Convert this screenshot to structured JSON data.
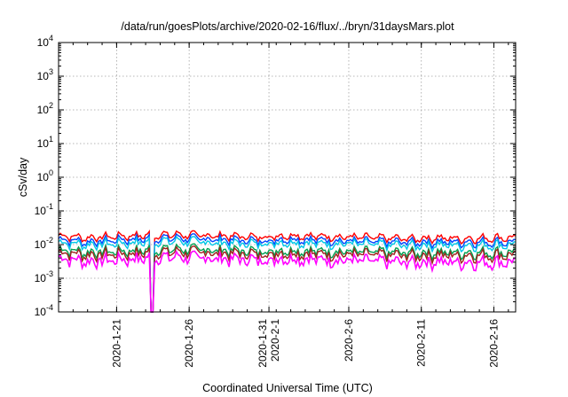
{
  "chart_data": {
    "type": "line",
    "title": "/data/run/goesPlots/archive/2020-02-16/flux/../bryn/31daysMars.plot",
    "xlabel": "Coordinated Universal Time (UTC)",
    "ylabel": "cSv/day",
    "yscale": "log",
    "ylim": [
      0.0001,
      10000
    ],
    "y_ticks": [
      {
        "value": 0.0001,
        "base": "10",
        "exp": "-4"
      },
      {
        "value": 0.001,
        "base": "10",
        "exp": "-3"
      },
      {
        "value": 0.01,
        "base": "10",
        "exp": "-2"
      },
      {
        "value": 0.1,
        "base": "10",
        "exp": "-1"
      },
      {
        "value": 1,
        "base": "10",
        "exp": "0"
      },
      {
        "value": 10,
        "base": "10",
        "exp": "1"
      },
      {
        "value": 100,
        "base": "10",
        "exp": "2"
      },
      {
        "value": 1000,
        "base": "10",
        "exp": "3"
      },
      {
        "value": 10000,
        "base": "10",
        "exp": "4"
      }
    ],
    "xlim": [
      "2020-01-17",
      "2020-02-17T12:00"
    ],
    "x_ticks": [
      "2020-1-21",
      "2020-1-26",
      "2020-1-31|2020-2-1",
      "2020-2-6",
      "2020-2-11",
      "2020-2-16"
    ],
    "x_tick_dates": [
      "2020-01-21",
      "2020-01-26",
      "2020-01-31T12:00",
      "2020-02-06",
      "2020-02-11",
      "2020-02-16"
    ],
    "grid": true,
    "legend": "none",
    "dropout": {
      "start": "2020-01-23T08:00",
      "end": "2020-01-23T14:00",
      "min": 0.0001
    },
    "series": [
      {
        "color": "#ff0000",
        "values": [
          {
            "x": "2020-01-17",
            "y": 0.019
          },
          {
            "x": "2020-01-19",
            "y": 0.016
          },
          {
            "x": "2020-01-21",
            "y": 0.018
          },
          {
            "x": "2020-01-23",
            "y": 0.019
          },
          {
            "x": "2020-01-25",
            "y": 0.02
          },
          {
            "x": "2020-01-27",
            "y": 0.019
          },
          {
            "x": "2020-01-29",
            "y": 0.018
          },
          {
            "x": "2020-01-31",
            "y": 0.017
          },
          {
            "x": "2020-02-02",
            "y": 0.019
          },
          {
            "x": "2020-02-04",
            "y": 0.018
          },
          {
            "x": "2020-02-06",
            "y": 0.017
          },
          {
            "x": "2020-02-08",
            "y": 0.016
          },
          {
            "x": "2020-02-10",
            "y": 0.015
          },
          {
            "x": "2020-02-12",
            "y": 0.016
          },
          {
            "x": "2020-02-14",
            "y": 0.015
          },
          {
            "x": "2020-02-16",
            "y": 0.016
          },
          {
            "x": "2020-02-17T12:00",
            "y": 0.016
          }
        ]
      },
      {
        "color": "#0044ff",
        "values": [
          {
            "x": "2020-01-17",
            "y": 0.015
          },
          {
            "x": "2020-01-19",
            "y": 0.012
          },
          {
            "x": "2020-01-21",
            "y": 0.014
          },
          {
            "x": "2020-01-23",
            "y": 0.015
          },
          {
            "x": "2020-01-25",
            "y": 0.016
          },
          {
            "x": "2020-01-27",
            "y": 0.015
          },
          {
            "x": "2020-01-29",
            "y": 0.014
          },
          {
            "x": "2020-01-31",
            "y": 0.013
          },
          {
            "x": "2020-02-02",
            "y": 0.015
          },
          {
            "x": "2020-02-04",
            "y": 0.014
          },
          {
            "x": "2020-02-06",
            "y": 0.013
          },
          {
            "x": "2020-02-08",
            "y": 0.012
          },
          {
            "x": "2020-02-10",
            "y": 0.012
          },
          {
            "x": "2020-02-12",
            "y": 0.012
          },
          {
            "x": "2020-02-14",
            "y": 0.012
          },
          {
            "x": "2020-02-16",
            "y": 0.012
          },
          {
            "x": "2020-02-17T12:00",
            "y": 0.012
          }
        ]
      },
      {
        "color": "#00c8e6",
        "values": [
          {
            "x": "2020-01-17",
            "y": 0.012
          },
          {
            "x": "2020-01-19",
            "y": 0.01
          },
          {
            "x": "2020-01-21",
            "y": 0.011
          },
          {
            "x": "2020-01-23",
            "y": 0.012
          },
          {
            "x": "2020-01-25",
            "y": 0.013
          },
          {
            "x": "2020-01-27",
            "y": 0.012
          },
          {
            "x": "2020-01-29",
            "y": 0.011
          },
          {
            "x": "2020-01-31",
            "y": 0.011
          },
          {
            "x": "2020-02-02",
            "y": 0.012
          },
          {
            "x": "2020-02-04",
            "y": 0.011
          },
          {
            "x": "2020-02-06",
            "y": 0.011
          },
          {
            "x": "2020-02-08",
            "y": 0.01
          },
          {
            "x": "2020-02-10",
            "y": 0.0095
          },
          {
            "x": "2020-02-12",
            "y": 0.01
          },
          {
            "x": "2020-02-14",
            "y": 0.0095
          },
          {
            "x": "2020-02-16",
            "y": 0.01
          },
          {
            "x": "2020-02-17T12:00",
            "y": 0.01
          }
        ]
      },
      {
        "color": "#00a050",
        "values": [
          {
            "x": "2020-01-17",
            "y": 0.0075
          },
          {
            "x": "2020-01-19",
            "y": 0.006
          },
          {
            "x": "2020-01-21",
            "y": 0.0065
          },
          {
            "x": "2020-01-23",
            "y": 0.007
          },
          {
            "x": "2020-01-25",
            "y": 0.0075
          },
          {
            "x": "2020-01-27",
            "y": 0.0072
          },
          {
            "x": "2020-01-29",
            "y": 0.0068
          },
          {
            "x": "2020-01-31",
            "y": 0.0065
          },
          {
            "x": "2020-02-02",
            "y": 0.007
          },
          {
            "x": "2020-02-04",
            "y": 0.0066
          },
          {
            "x": "2020-02-06",
            "y": 0.0064
          },
          {
            "x": "2020-02-08",
            "y": 0.006
          },
          {
            "x": "2020-02-10",
            "y": 0.0058
          },
          {
            "x": "2020-02-12",
            "y": 0.006
          },
          {
            "x": "2020-02-14",
            "y": 0.0058
          },
          {
            "x": "2020-02-16",
            "y": 0.006
          },
          {
            "x": "2020-02-17T12:00",
            "y": 0.006
          }
        ]
      },
      {
        "color": "#a0201c",
        "values": [
          {
            "x": "2020-01-17",
            "y": 0.0062
          },
          {
            "x": "2020-01-19",
            "y": 0.005
          },
          {
            "x": "2020-01-21",
            "y": 0.0054
          },
          {
            "x": "2020-01-23",
            "y": 0.0058
          },
          {
            "x": "2020-01-25",
            "y": 0.0062
          },
          {
            "x": "2020-01-27",
            "y": 0.006
          },
          {
            "x": "2020-01-29",
            "y": 0.0056
          },
          {
            "x": "2020-01-31",
            "y": 0.0054
          },
          {
            "x": "2020-02-02",
            "y": 0.0058
          },
          {
            "x": "2020-02-04",
            "y": 0.0055
          },
          {
            "x": "2020-02-06",
            "y": 0.0053
          },
          {
            "x": "2020-02-08",
            "y": 0.005
          },
          {
            "x": "2020-02-10",
            "y": 0.0048
          },
          {
            "x": "2020-02-12",
            "y": 0.005
          },
          {
            "x": "2020-02-14",
            "y": 0.0048
          },
          {
            "x": "2020-02-16",
            "y": 0.005
          },
          {
            "x": "2020-02-17T12:00",
            "y": 0.005
          }
        ]
      },
      {
        "color": "#ff00ff",
        "values": [
          {
            "x": "2020-01-17",
            "y": 0.0042
          },
          {
            "x": "2020-01-19",
            "y": 0.0032
          },
          {
            "x": "2020-01-21",
            "y": 0.0036
          },
          {
            "x": "2020-01-23",
            "y": 0.004
          },
          {
            "x": "2020-01-25",
            "y": 0.0044
          },
          {
            "x": "2020-01-27",
            "y": 0.0041
          },
          {
            "x": "2020-01-29",
            "y": 0.0038
          },
          {
            "x": "2020-01-31",
            "y": 0.0036
          },
          {
            "x": "2020-02-02",
            "y": 0.004
          },
          {
            "x": "2020-02-04",
            "y": 0.0037
          },
          {
            "x": "2020-02-06",
            "y": 0.0035
          },
          {
            "x": "2020-02-08",
            "y": 0.0032
          },
          {
            "x": "2020-02-10",
            "y": 0.003
          },
          {
            "x": "2020-02-12",
            "y": 0.0032
          },
          {
            "x": "2020-02-14",
            "y": 0.003
          },
          {
            "x": "2020-02-16",
            "y": 0.0031
          },
          {
            "x": "2020-02-17T12:00",
            "y": 0.0031
          }
        ]
      }
    ]
  }
}
